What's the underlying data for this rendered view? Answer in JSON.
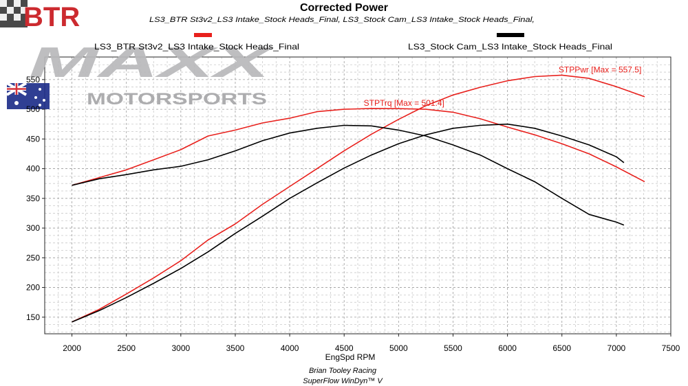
{
  "title": "Corrected Power",
  "subtitle": "LS3_BTR St3v2_LS3 Intake_Stock Heads_Final, LS3_Stock Cam_LS3 Intake_Stock Heads_Final,",
  "legend": {
    "left": "LS3_BTR St3v2_LS3 Intake_Stock Heads_Final",
    "right": "LS3_Stock Cam_LS3 Intake_Stock Heads_Final"
  },
  "colors": {
    "btr": "#e8201c",
    "stock": "#000000"
  },
  "logo": {
    "btr": "BTR",
    "maxx": "MAXX",
    "motorsports": "MOTORSPORTS"
  },
  "xlabel": "EngSpd RPM",
  "footer": {
    "line1": "Brian Tooley Racing",
    "line2": "SuperFlow WinDyn™ V"
  },
  "chart_data": {
    "type": "line",
    "xlim": [
      1750,
      7500
    ],
    "ylim": [
      122,
      588
    ],
    "x_ticks": [
      2000,
      2500,
      3000,
      3500,
      4000,
      4500,
      5000,
      5500,
      6000,
      6500,
      7000,
      7500
    ],
    "y_ticks": [
      150,
      200,
      250,
      300,
      350,
      400,
      450,
      500,
      550
    ],
    "grid": true,
    "series": [
      {
        "name": "STPPwr",
        "run": "LS3_BTR St3v2_LS3 Intake_Stock Heads_Final",
        "color": "#e8201c",
        "annotation": "STPPwr [Max = 557.5]",
        "x": [
          2000,
          2250,
          2500,
          2750,
          3000,
          3250,
          3500,
          3750,
          4000,
          4250,
          4500,
          4750,
          5000,
          5250,
          5500,
          5750,
          6000,
          6250,
          6500,
          6750,
          7000,
          7260
        ],
        "y": [
          142,
          163,
          189,
          216,
          245,
          280,
          307,
          340,
          370,
          400,
          430,
          458,
          483,
          506,
          524,
          537,
          548,
          555,
          557.5,
          552,
          538,
          521
        ]
      },
      {
        "name": "STPTrq",
        "run": "LS3_BTR St3v2_LS3 Intake_Stock Heads_Final",
        "color": "#e8201c",
        "annotation": "STPTrq [Max = 501.4]",
        "x": [
          2000,
          2250,
          2500,
          2750,
          3000,
          3250,
          3500,
          3750,
          4000,
          4250,
          4500,
          4750,
          5000,
          5250,
          5500,
          5750,
          6000,
          6250,
          6500,
          6750,
          7000,
          7260
        ],
        "y": [
          372,
          385,
          398,
          415,
          432,
          455,
          465,
          477,
          485,
          496,
          500,
          501.4,
          501,
          500,
          495,
          484,
          470,
          457,
          442,
          425,
          403,
          378
        ]
      },
      {
        "name": "STPPwr",
        "run": "LS3_Stock Cam_LS3 Intake_Stock Heads_Final",
        "color": "#000000",
        "x": [
          2000,
          2250,
          2500,
          2750,
          3000,
          3250,
          3500,
          3750,
          4000,
          4250,
          4500,
          4750,
          5000,
          5250,
          5500,
          5750,
          6000,
          6250,
          6500,
          6750,
          7000,
          7070
        ],
        "y": [
          142,
          161,
          183,
          207,
          232,
          260,
          291,
          320,
          350,
          376,
          401,
          423,
          442,
          457,
          468,
          473,
          475,
          468,
          455,
          440,
          420,
          410
        ]
      },
      {
        "name": "STPTrq",
        "run": "LS3_Stock Cam_LS3 Intake_Stock Heads_Final",
        "color": "#000000",
        "x": [
          2000,
          2250,
          2500,
          2750,
          3000,
          3250,
          3500,
          3750,
          4000,
          4250,
          4500,
          4750,
          5000,
          5250,
          5500,
          5750,
          6000,
          6250,
          6500,
          6750,
          7000,
          7070
        ],
        "y": [
          372,
          383,
          390,
          398,
          404,
          415,
          430,
          447,
          460,
          468,
          473,
          472,
          465,
          455,
          440,
          423,
          400,
          378,
          350,
          323,
          310,
          305
        ]
      }
    ]
  }
}
